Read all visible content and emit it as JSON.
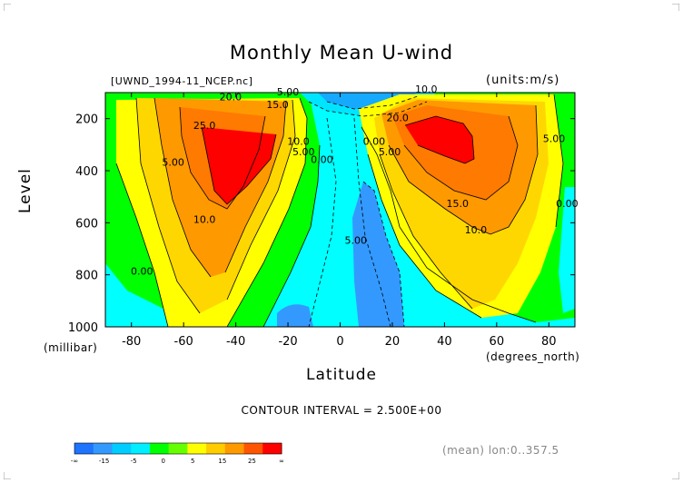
{
  "chart_data": {
    "type": "heatmap",
    "title": "Monthly Mean U-wind",
    "source_label": "[UWND_1994-11_NCEP.nc]",
    "units_label": "(units:m/s)",
    "ylabel": "Level",
    "ylabel_units": "(millibar)",
    "xlabel": "Latitude",
    "xlabel_units": "(degrees_north)",
    "xlim": [
      -90,
      90
    ],
    "ylim": [
      1000,
      100
    ],
    "x_ticks": [
      -80,
      -60,
      -40,
      -20,
      0,
      20,
      40,
      60,
      80
    ],
    "y_ticks": [
      200,
      400,
      600,
      800,
      1000
    ],
    "contour_interval_text": "CONTOUR INTERVAL = 2.500E+00",
    "averaging_text": "(mean) lon:0..357.5",
    "jets": [
      {
        "name_hint": "southern",
        "lat": -45,
        "level": 250,
        "max": 27.5
      },
      {
        "name_hint": "northern",
        "lat": 35,
        "level": 200,
        "max": 27.5
      }
    ],
    "contour_labels": [
      {
        "text": "20.0",
        "lat": -42,
        "level": 130
      },
      {
        "text": "15.0",
        "lat": -24,
        "level": 160
      },
      {
        "text": "25.0",
        "lat": -52,
        "level": 240
      },
      {
        "text": "5.00",
        "lat": -64,
        "level": 380
      },
      {
        "text": "10.0",
        "lat": -52,
        "level": 600
      },
      {
        "text": "0.00",
        "lat": -76,
        "level": 800
      },
      {
        "text": "10.0",
        "lat": -16,
        "level": 300
      },
      {
        "text": "5.00",
        "lat": -14,
        "level": 340
      },
      {
        "text": "0.00",
        "lat": -7,
        "level": 370
      },
      {
        "text": "5.00",
        "lat": -20,
        "level": 110
      },
      {
        "text": "10.0",
        "lat": 33,
        "level": 100
      },
      {
        "text": "20.0",
        "lat": 22,
        "level": 210
      },
      {
        "text": "0.00",
        "lat": 13,
        "level": 300
      },
      {
        "text": "5.00",
        "lat": 19,
        "level": 340
      },
      {
        "text": "5.00",
        "lat": 6,
        "level": 680
      },
      {
        "text": "15.0",
        "lat": 45,
        "level": 540
      },
      {
        "text": "10.0",
        "lat": 52,
        "level": 640
      },
      {
        "text": "5.00",
        "lat": 82,
        "level": 290
      },
      {
        "text": "0.00",
        "lat": 87,
        "level": 540
      }
    ],
    "colorbar": {
      "labels": [
        "-∞",
        "-15",
        "-5",
        "0",
        "5",
        "15",
        "25",
        "∞"
      ],
      "colors": [
        "#1e73ff",
        "#3399ff",
        "#00ccff",
        "#00eeff",
        "#00ff00",
        "#66ff00",
        "#ffff00",
        "#ffcc00",
        "#ff9900",
        "#ff5500",
        "#ff0000"
      ]
    }
  }
}
